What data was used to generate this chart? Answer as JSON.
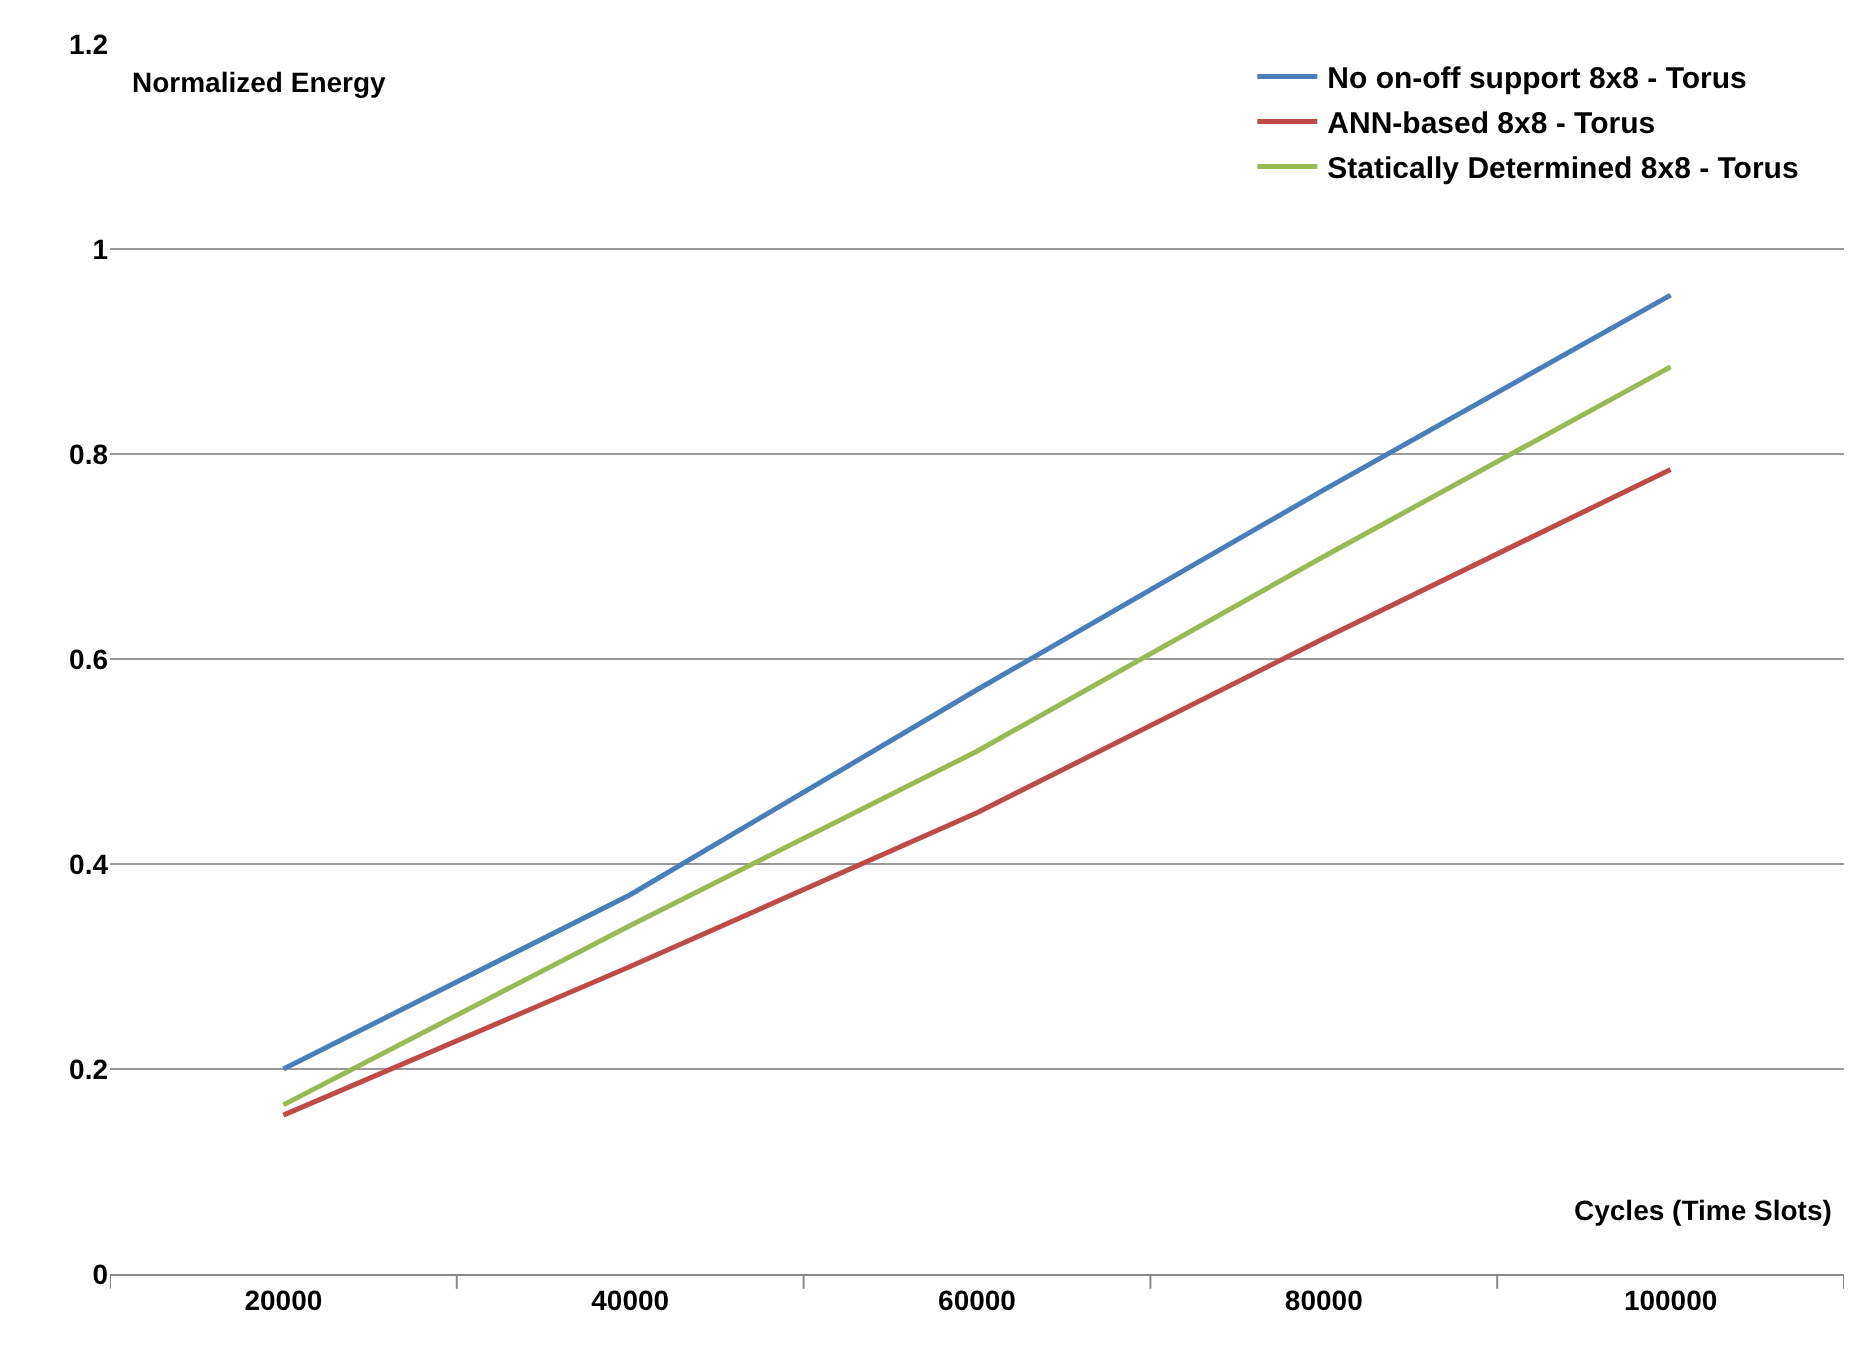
{
  "chart_data": {
    "type": "line",
    "ylabel": "Normalized Energy",
    "xlabel": "Cycles (Time Slots)",
    "categories": [
      "20000",
      "40000",
      "60000",
      "80000",
      "100000"
    ],
    "series": [
      {
        "name": "No on-off support 8x8 - Torus",
        "color": "#4a7ebb",
        "values": [
          0.2,
          0.37,
          0.57,
          0.765,
          0.955
        ]
      },
      {
        "name": "ANN-based 8x8 - Torus",
        "color": "#be4b48",
        "values": [
          0.155,
          0.3,
          0.45,
          0.62,
          0.785
        ]
      },
      {
        "name": "Statically Determined 8x8 - Torus",
        "color": "#98b954",
        "values": [
          0.165,
          0.34,
          0.51,
          0.7,
          0.885
        ]
      }
    ],
    "ylim": [
      0,
      1.2
    ],
    "yticks": [
      0,
      0.2,
      0.4,
      0.6,
      0.8,
      1,
      1.2
    ],
    "grid": "y",
    "legend": "top right",
    "marker": "none",
    "line_style": "solid"
  }
}
